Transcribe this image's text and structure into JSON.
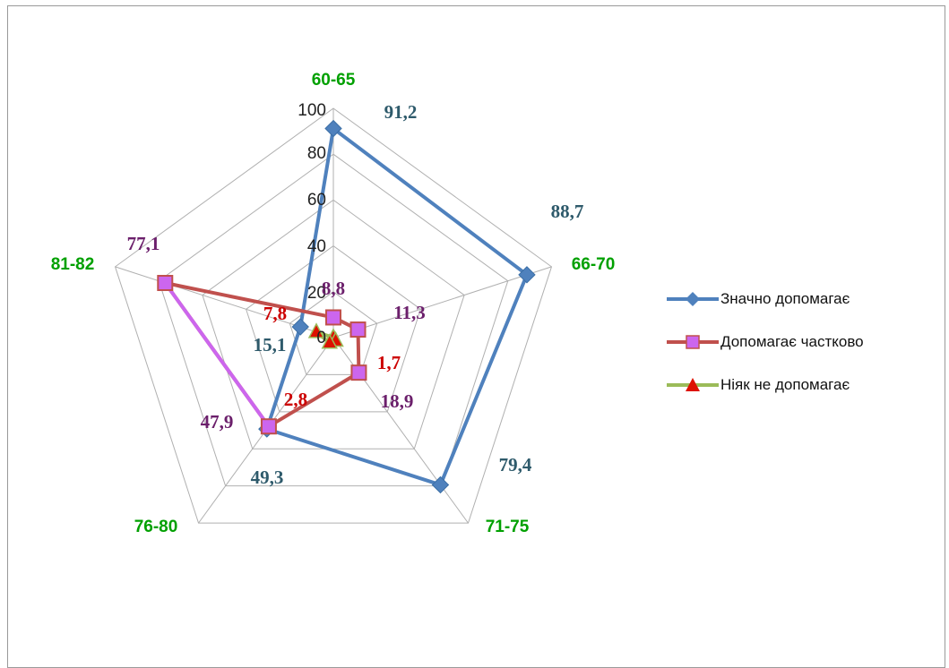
{
  "chart_data": {
    "type": "radar",
    "categories": [
      "60-65",
      "66-70",
      "71-75",
      "76-80",
      "81-82"
    ],
    "rlim": [
      0,
      100
    ],
    "ticks": [
      "0",
      "20",
      "40",
      "60",
      "80",
      "100"
    ],
    "grid": true,
    "legend_position": "right",
    "series": [
      {
        "name": "Значно допомагає",
        "values": [
          91.2,
          88.7,
          79.4,
          49.3,
          15.1
        ],
        "labels": [
          "91,2",
          "88,7",
          "79,4",
          "49,3",
          "15,1"
        ],
        "color": "#4f81bd",
        "label_color": "#2e5a6b",
        "marker": "diamond"
      },
      {
        "name": "Допомагає частково",
        "values": [
          8.8,
          11.3,
          18.9,
          47.9,
          77.1
        ],
        "labels": [
          "8,8",
          "11,3",
          "18,9",
          "47,9",
          "77,1"
        ],
        "color": "#c0504d",
        "label_color": "#6b1f6b",
        "marker": "square",
        "marker_fill": "#cc66ee"
      },
      {
        "name": "Ніяк не допомагає",
        "values": [
          0,
          0,
          1.7,
          2.8,
          7.8
        ],
        "labels": [
          "",
          "",
          "1,7",
          "2,8",
          "7,8"
        ],
        "color": "#9bbb59",
        "label_color": "#cc0000",
        "marker": "triangle",
        "marker_fill": "#dd1100"
      }
    ]
  }
}
